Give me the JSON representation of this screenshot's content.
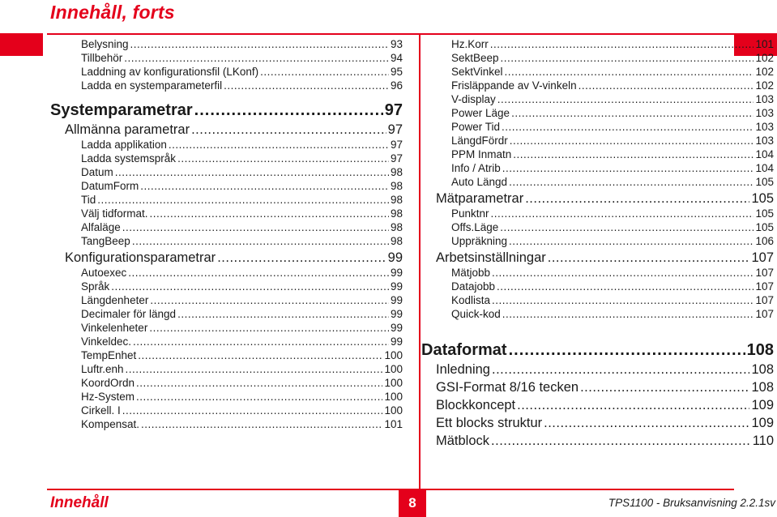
{
  "header": {
    "title": "Innehåll, forts"
  },
  "columns": {
    "left": [
      {
        "level": 3,
        "label": "Belysning",
        "page": "93"
      },
      {
        "level": 3,
        "label": "Tillbehör",
        "page": "94"
      },
      {
        "level": 3,
        "label": "Laddning av konfigurationsfil (LKonf)",
        "page": "95"
      },
      {
        "level": 3,
        "label": "Ladda en systemparameterfil",
        "page": "96"
      },
      {
        "level": 1,
        "label": "Systemparametrar",
        "page": "97"
      },
      {
        "level": 2,
        "label": "Allmänna parametrar",
        "page": "97"
      },
      {
        "level": 3,
        "label": "Ladda applikation",
        "page": "97"
      },
      {
        "level": 3,
        "label": "Ladda systemspråk",
        "page": "97"
      },
      {
        "level": 3,
        "label": "Datum",
        "page": "98"
      },
      {
        "level": 3,
        "label": "DatumForm",
        "page": "98"
      },
      {
        "level": 3,
        "label": "Tid",
        "page": "98"
      },
      {
        "level": 3,
        "label": "Välj tidformat.",
        "page": "98"
      },
      {
        "level": 3,
        "label": "Alfaläge",
        "page": "98"
      },
      {
        "level": 3,
        "label": "TangBeep",
        "page": "98"
      },
      {
        "level": 2,
        "label": "Konfigurationsparametrar",
        "page": "99"
      },
      {
        "level": 3,
        "label": "Autoexec",
        "page": "99"
      },
      {
        "level": 3,
        "label": "Språk",
        "page": "99"
      },
      {
        "level": 3,
        "label": "Längdenheter",
        "page": "99"
      },
      {
        "level": 3,
        "label": "Decimaler för längd",
        "page": "99"
      },
      {
        "level": 3,
        "label": "Vinkelenheter",
        "page": "99"
      },
      {
        "level": 3,
        "label": "Vinkeldec.",
        "page": "99"
      },
      {
        "level": 3,
        "label": "TempEnhet",
        "page": "100"
      },
      {
        "level": 3,
        "label": "Luftr.enh",
        "page": "100"
      },
      {
        "level": 3,
        "label": "KoordOrdn",
        "page": "100"
      },
      {
        "level": 3,
        "label": "Hz-System",
        "page": "100"
      },
      {
        "level": 3,
        "label": "Cirkell. I",
        "page": "100"
      },
      {
        "level": 3,
        "label": "Kompensat.",
        "page": "101"
      }
    ],
    "right": [
      {
        "level": 3,
        "label": "Hz.Korr",
        "page": "101"
      },
      {
        "level": 3,
        "label": "SektBeep",
        "page": "102"
      },
      {
        "level": 3,
        "label": "SektVinkel",
        "page": "102"
      },
      {
        "level": 3,
        "label": "Frisläppande av V-vinkeln",
        "page": "102"
      },
      {
        "level": 3,
        "label": "V-display",
        "page": "103"
      },
      {
        "level": 3,
        "label": "Power Läge",
        "page": "103"
      },
      {
        "level": 3,
        "label": "Power Tid",
        "page": "103"
      },
      {
        "level": 3,
        "label": "LängdFördr",
        "page": "103"
      },
      {
        "level": 3,
        "label": "PPM Inmatn",
        "page": "104"
      },
      {
        "level": 3,
        "label": "Info / Atrib",
        "page": "104"
      },
      {
        "level": 3,
        "label": "Auto Längd",
        "page": "105"
      },
      {
        "level": 2,
        "label": "Mätparametrar",
        "page": "105"
      },
      {
        "level": 3,
        "label": "Punktnr",
        "page": "105"
      },
      {
        "level": 3,
        "label": "Offs.Läge",
        "page": "105"
      },
      {
        "level": 3,
        "label": "Uppräkning",
        "page": "106"
      },
      {
        "level": 2,
        "label": "Arbetsinställningar",
        "page": "107"
      },
      {
        "level": 3,
        "label": "Mätjobb",
        "page": "107"
      },
      {
        "level": 3,
        "label": "Datajobb",
        "page": "107"
      },
      {
        "level": 3,
        "label": "Kodlista",
        "page": "107"
      },
      {
        "level": 3,
        "label": "Quick-kod",
        "page": "107"
      },
      {
        "level": 1,
        "label": "Dataformat",
        "page": "108"
      },
      {
        "level": 2,
        "label": "Inledning",
        "page": "108"
      },
      {
        "level": 2,
        "label": "GSI-Format 8/16 tecken",
        "page": "108"
      },
      {
        "level": 2,
        "label": "Blockkoncept",
        "page": "109"
      },
      {
        "level": 2,
        "label": "Ett blocks struktur",
        "page": "109"
      },
      {
        "level": 2,
        "label": "Mätblock",
        "page": "110"
      }
    ]
  },
  "footer": {
    "section": "Innehåll",
    "page_number": "8",
    "manual": "TPS1100 - Bruksanvisning 2.2.1sv"
  },
  "colors": {
    "accent": "#e4001b",
    "text": "#1a1a1a"
  }
}
